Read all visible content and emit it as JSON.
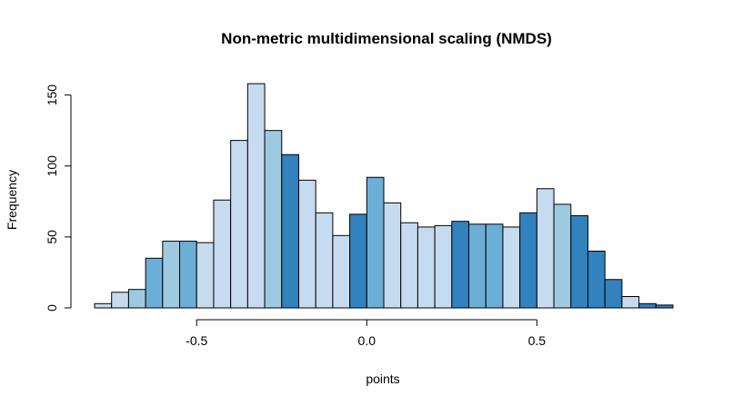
{
  "chart_data": {
    "type": "bar",
    "title": "Non-metric multidimensional scaling (NMDS)",
    "xlabel": "points",
    "ylabel": "Frequency",
    "xlim": [
      -0.8,
      0.9
    ],
    "ylim": [
      0,
      160
    ],
    "bin_width": 0.05,
    "x_ticks": [
      -0.5,
      0.0,
      0.5
    ],
    "x_tick_labels": [
      "-0.5",
      "0.0",
      "0.5"
    ],
    "y_ticks": [
      0,
      50,
      100,
      150
    ],
    "y_tick_labels": [
      "0",
      "50",
      "100",
      "150"
    ],
    "grid": false,
    "legend": "none",
    "palette": [
      "#c6dbef",
      "#9ecae1",
      "#6baed6",
      "#3182bd"
    ],
    "bins": [
      {
        "x0": -0.8,
        "x1": -0.75,
        "value": 3,
        "color": "#c6dbef"
      },
      {
        "x0": -0.75,
        "x1": -0.7,
        "value": 11,
        "color": "#c6dbef"
      },
      {
        "x0": -0.7,
        "x1": -0.65,
        "value": 13,
        "color": "#9ecae1"
      },
      {
        "x0": -0.65,
        "x1": -0.6,
        "value": 35,
        "color": "#6baed6"
      },
      {
        "x0": -0.6,
        "x1": -0.55,
        "value": 47,
        "color": "#9ecae1"
      },
      {
        "x0": -0.55,
        "x1": -0.5,
        "value": 47,
        "color": "#6baed6"
      },
      {
        "x0": -0.5,
        "x1": -0.45,
        "value": 46,
        "color": "#c6dbef"
      },
      {
        "x0": -0.45,
        "x1": -0.4,
        "value": 76,
        "color": "#c6dbef"
      },
      {
        "x0": -0.4,
        "x1": -0.35,
        "value": 118,
        "color": "#c6dbef"
      },
      {
        "x0": -0.35,
        "x1": -0.3,
        "value": 158,
        "color": "#c6dbef"
      },
      {
        "x0": -0.3,
        "x1": -0.25,
        "value": 125,
        "color": "#9ecae1"
      },
      {
        "x0": -0.25,
        "x1": -0.2,
        "value": 108,
        "color": "#3182bd"
      },
      {
        "x0": -0.2,
        "x1": -0.15,
        "value": 90,
        "color": "#c6dbef"
      },
      {
        "x0": -0.15,
        "x1": -0.1,
        "value": 67,
        "color": "#c6dbef"
      },
      {
        "x0": -0.1,
        "x1": -0.05,
        "value": 51,
        "color": "#c6dbef"
      },
      {
        "x0": -0.05,
        "x1": 0.0,
        "value": 66,
        "color": "#3182bd"
      },
      {
        "x0": 0.0,
        "x1": 0.05,
        "value": 92,
        "color": "#6baed6"
      },
      {
        "x0": 0.05,
        "x1": 0.1,
        "value": 74,
        "color": "#c6dbef"
      },
      {
        "x0": 0.1,
        "x1": 0.15,
        "value": 60,
        "color": "#c6dbef"
      },
      {
        "x0": 0.15,
        "x1": 0.2,
        "value": 57,
        "color": "#c6dbef"
      },
      {
        "x0": 0.2,
        "x1": 0.25,
        "value": 58,
        "color": "#c6dbef"
      },
      {
        "x0": 0.25,
        "x1": 0.3,
        "value": 61,
        "color": "#3182bd"
      },
      {
        "x0": 0.3,
        "x1": 0.35,
        "value": 59,
        "color": "#6baed6"
      },
      {
        "x0": 0.35,
        "x1": 0.4,
        "value": 59,
        "color": "#6baed6"
      },
      {
        "x0": 0.4,
        "x1": 0.45,
        "value": 57,
        "color": "#c6dbef"
      },
      {
        "x0": 0.45,
        "x1": 0.5,
        "value": 67,
        "color": "#3182bd"
      },
      {
        "x0": 0.5,
        "x1": 0.55,
        "value": 84,
        "color": "#c6dbef"
      },
      {
        "x0": 0.55,
        "x1": 0.6,
        "value": 73,
        "color": "#9ecae1"
      },
      {
        "x0": 0.6,
        "x1": 0.65,
        "value": 65,
        "color": "#3182bd"
      },
      {
        "x0": 0.65,
        "x1": 0.7,
        "value": 40,
        "color": "#3182bd"
      },
      {
        "x0": 0.7,
        "x1": 0.75,
        "value": 20,
        "color": "#3182bd"
      },
      {
        "x0": 0.75,
        "x1": 0.8,
        "value": 8,
        "color": "#c6dbef"
      },
      {
        "x0": 0.8,
        "x1": 0.85,
        "value": 3,
        "color": "#3182bd"
      },
      {
        "x0": 0.85,
        "x1": 0.9,
        "value": 2,
        "color": "#3182bd"
      }
    ]
  }
}
